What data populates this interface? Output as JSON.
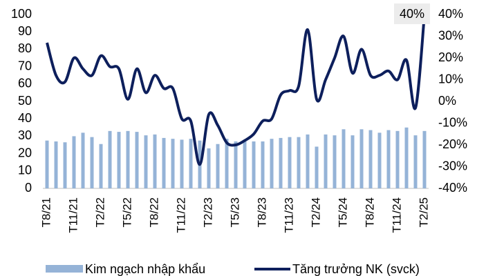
{
  "chart_data": {
    "type": "bar-line",
    "categories": [
      "T8/21",
      null,
      null,
      "T11/21",
      null,
      null,
      "T2/22",
      null,
      null,
      "T5/22",
      null,
      null,
      "T8/22",
      null,
      null,
      "T11/22",
      null,
      null,
      "T2/23",
      null,
      null,
      "T5/23",
      null,
      null,
      "T8/23",
      null,
      null,
      "T11/23",
      null,
      null,
      "T2/24",
      null,
      null,
      "T5/24",
      null,
      null,
      "T8/24",
      null,
      null,
      "T11/24",
      null,
      null,
      "T2/25"
    ],
    "series": [
      {
        "name": "Kim ngạch nhập khẩu",
        "type": "bar",
        "color": "#95b3d7",
        "values": [
          27.5,
          27,
          26.5,
          30,
          32,
          29.5,
          25.5,
          33,
          32.5,
          33,
          32.5,
          30.5,
          31,
          29,
          28.5,
          28,
          28.5,
          27.5,
          23,
          25.5,
          28.5,
          27,
          27,
          27,
          27,
          28.5,
          29,
          29.5,
          29.5,
          31,
          24,
          31,
          30.5,
          34,
          30.5,
          34,
          33.5,
          32,
          33.5,
          33,
          35,
          30.5,
          33
        ]
      },
      {
        "name": "Tăng trưởng NK (svck)",
        "type": "line",
        "axis": "y2",
        "color": "#0d1f5c",
        "values": [
          27,
          12,
          9,
          20,
          15,
          12,
          21,
          16,
          15,
          1,
          15,
          4,
          12,
          6,
          6,
          -8,
          -9,
          -29,
          -6,
          -11,
          -19,
          -20,
          -18,
          -15,
          -9,
          -8,
          3,
          5,
          7,
          33,
          1,
          10,
          20,
          30,
          13,
          24,
          12,
          12,
          14,
          10,
          19,
          -3,
          40
        ]
      }
    ],
    "ylim": [
      0,
      100
    ],
    "yticks": [
      0,
      10,
      20,
      30,
      40,
      50,
      60,
      70,
      80,
      90,
      100
    ],
    "y2lim": [
      -40,
      40
    ],
    "y2ticks": [
      {
        "value": -40,
        "label": "-40%"
      },
      {
        "value": -30,
        "label": "-30%"
      },
      {
        "value": -20,
        "label": "-20%"
      },
      {
        "value": -10,
        "label": "-10%"
      },
      {
        "value": 0,
        "label": "0%"
      },
      {
        "value": 10,
        "label": "10%"
      },
      {
        "value": 20,
        "label": "20%"
      },
      {
        "value": 30,
        "label": "30%"
      },
      {
        "value": 40,
        "label": "40%"
      }
    ],
    "annotations": [
      "40%"
    ]
  }
}
